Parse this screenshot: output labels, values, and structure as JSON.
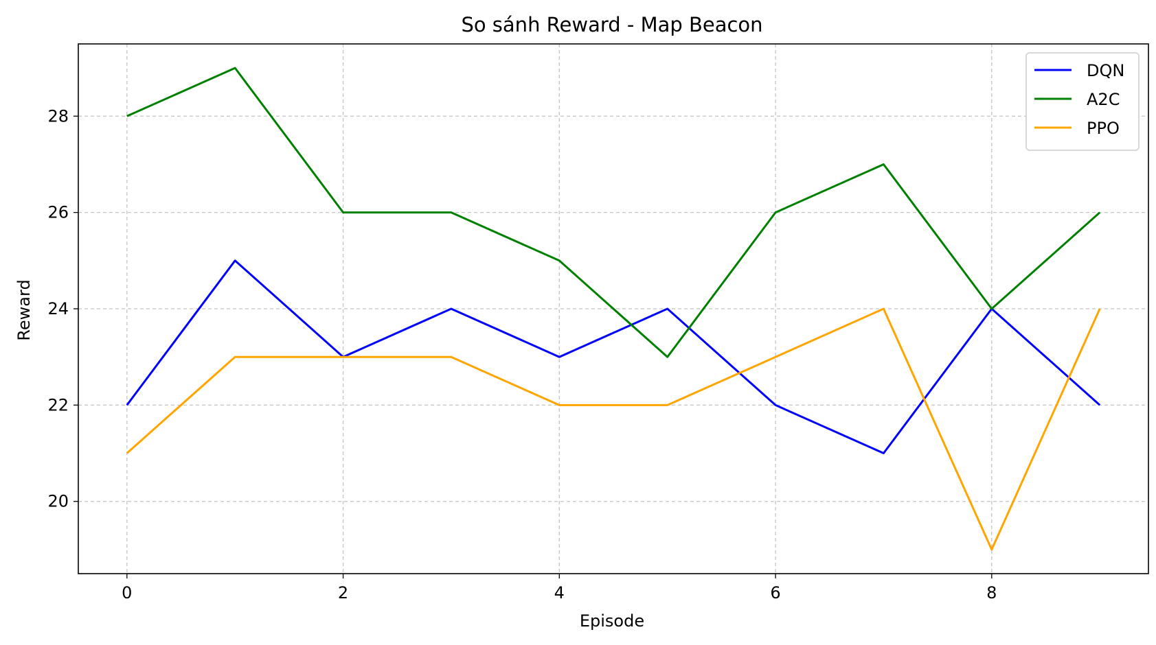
{
  "chart_data": {
    "type": "line",
    "title": "So sánh Reward - Map Beacon",
    "xlabel": "Episode",
    "ylabel": "Reward",
    "x": [
      0,
      1,
      2,
      3,
      4,
      5,
      6,
      7,
      8,
      9
    ],
    "xlim": [
      -0.45,
      9.45
    ],
    "ylim": [
      18.5,
      29.5
    ],
    "xticks": [
      0,
      2,
      4,
      6,
      8
    ],
    "yticks": [
      20,
      22,
      24,
      26,
      28
    ],
    "grid": true,
    "legend_position": "top-right",
    "series": [
      {
        "name": "DQN",
        "color": "#0000ff",
        "values": [
          22,
          25,
          23,
          24,
          23,
          24,
          22,
          21,
          24,
          22
        ]
      },
      {
        "name": "A2C",
        "color": "#008000",
        "values": [
          28,
          29,
          26,
          26,
          25,
          23,
          26,
          27,
          24,
          26
        ]
      },
      {
        "name": "PPO",
        "color": "#ffa500",
        "values": [
          21,
          23,
          23,
          23,
          22,
          22,
          23,
          24,
          19,
          24
        ]
      }
    ]
  }
}
